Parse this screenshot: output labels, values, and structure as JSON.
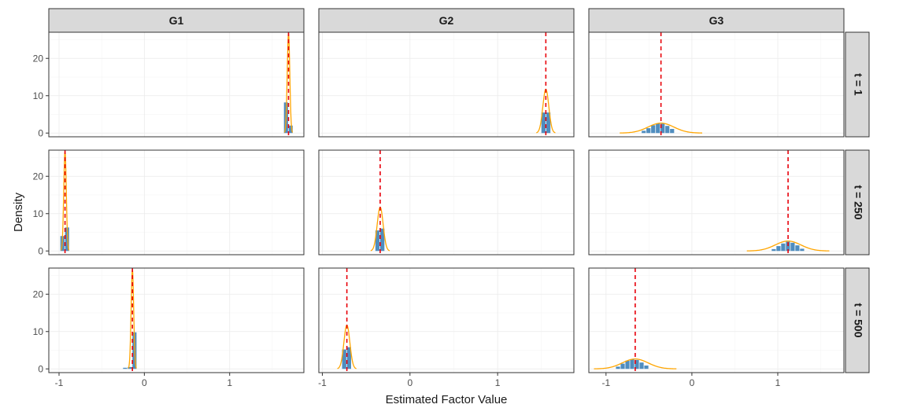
{
  "chart_data": {
    "type": "histogram-density-facet",
    "xlabel": "Estimated Factor Value",
    "ylabel": "Density",
    "column_strips": [
      "G1",
      "G2",
      "G3"
    ],
    "row_strips": [
      "t = 1",
      "t = 250",
      "t = 500"
    ],
    "ylim": [
      -1,
      27
    ],
    "yticks": [
      "0",
      "10",
      "20"
    ],
    "xlims": [
      [
        -1.12,
        1.87
      ],
      [
        -1.04,
        1.87
      ],
      [
        -1.2,
        1.77
      ]
    ],
    "xticks": [
      "-1",
      "0",
      "1"
    ],
    "colors": {
      "bars": "#4f8dbf",
      "density": "#ffa500",
      "true_value": "#e8000b"
    },
    "panels": [
      {
        "row": 0,
        "col": 0,
        "true_value": 1.69,
        "mean": 1.69,
        "sd": 0.015,
        "bin_width": 0.055,
        "bins": [
          {
            "x": 1.664,
            "density": 8.2
          },
          {
            "x": 1.719,
            "density": 2.0
          }
        ]
      },
      {
        "row": 0,
        "col": 1,
        "true_value": 1.55,
        "mean": 1.55,
        "sd": 0.034,
        "bin_width": 0.055,
        "bins": [
          {
            "x": 1.527,
            "density": 5.5
          },
          {
            "x": 1.582,
            "density": 5.5
          }
        ]
      },
      {
        "row": 0,
        "col": 2,
        "true_value": -0.36,
        "mean": -0.36,
        "sd": 0.15,
        "bin_width": 0.055,
        "bins": [
          {
            "x": -0.557,
            "density": 0.6
          },
          {
            "x": -0.502,
            "density": 1.3
          },
          {
            "x": -0.447,
            "density": 2.1
          },
          {
            "x": -0.392,
            "density": 2.6
          },
          {
            "x": -0.337,
            "density": 2.5
          },
          {
            "x": -0.282,
            "density": 1.9
          },
          {
            "x": -0.227,
            "density": 1.1
          }
        ]
      },
      {
        "row": 1,
        "col": 0,
        "true_value": -0.93,
        "mean": -0.93,
        "sd": 0.015,
        "bin_width": 0.055,
        "bins": [
          {
            "x": -0.957,
            "density": 4.0
          },
          {
            "x": -0.902,
            "density": 6.3
          }
        ]
      },
      {
        "row": 1,
        "col": 1,
        "true_value": -0.34,
        "mean": -0.34,
        "sd": 0.034,
        "bin_width": 0.055,
        "bins": [
          {
            "x": -0.367,
            "density": 5.5
          },
          {
            "x": -0.312,
            "density": 6.0
          }
        ]
      },
      {
        "row": 1,
        "col": 2,
        "true_value": 1.12,
        "mean": 1.12,
        "sd": 0.15,
        "bin_width": 0.055,
        "bins": [
          {
            "x": 0.957,
            "density": 0.5
          },
          {
            "x": 1.012,
            "density": 1.3
          },
          {
            "x": 1.067,
            "density": 2.0
          },
          {
            "x": 1.122,
            "density": 2.5
          },
          {
            "x": 1.177,
            "density": 2.2
          },
          {
            "x": 1.232,
            "density": 1.5
          },
          {
            "x": 1.287,
            "density": 0.6
          }
        ]
      },
      {
        "row": 2,
        "col": 0,
        "true_value": -0.14,
        "mean": -0.14,
        "sd": 0.015,
        "bin_width": 0.055,
        "bins": [
          {
            "x": -0.222,
            "density": 0.3
          },
          {
            "x": -0.167,
            "density": 0.5
          },
          {
            "x": -0.112,
            "density": 9.8
          }
        ]
      },
      {
        "row": 2,
        "col": 1,
        "true_value": -0.72,
        "mean": -0.72,
        "sd": 0.034,
        "bin_width": 0.055,
        "bins": [
          {
            "x": -0.747,
            "density": 5.2
          },
          {
            "x": -0.692,
            "density": 5.8
          }
        ]
      },
      {
        "row": 2,
        "col": 2,
        "true_value": -0.66,
        "mean": -0.66,
        "sd": 0.15,
        "bin_width": 0.055,
        "bins": [
          {
            "x": -0.857,
            "density": 0.6
          },
          {
            "x": -0.802,
            "density": 1.4
          },
          {
            "x": -0.747,
            "density": 2.2
          },
          {
            "x": -0.692,
            "density": 2.6
          },
          {
            "x": -0.637,
            "density": 2.4
          },
          {
            "x": -0.582,
            "density": 1.7
          },
          {
            "x": -0.527,
            "density": 0.9
          }
        ]
      }
    ]
  }
}
